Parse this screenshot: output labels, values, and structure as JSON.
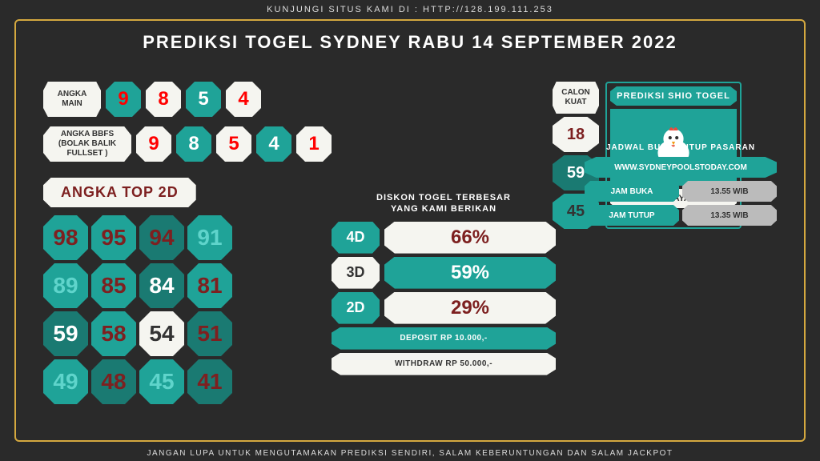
{
  "header": "KUNJUNGI SITUS KAMI DI : HTTP://128.199.111.253",
  "title": "PREDIKSI TOGEL SYDNEY RABU 14 SEPTEMBER 2022",
  "footer": "JANGAN LUPA UNTUK MENGUTAMAKAN PREDIKSI SENDIRI, SALAM KEBERUNTUNGAN DAN SALAM JACKPOT",
  "angka_main": {
    "label": "ANGKA MAIN",
    "nums": [
      "9",
      "8",
      "5",
      "4"
    ],
    "colors": [
      "teal",
      "cream",
      "teal",
      "cream"
    ],
    "textcolors": [
      "red",
      "red",
      "#fff",
      "red"
    ]
  },
  "angka_bbfs": {
    "label": "ANGKA BBFS (BOLAK BALIK FULLSET )",
    "nums": [
      "9",
      "8",
      "5",
      "4",
      "1"
    ],
    "colors": [
      "cream",
      "teal",
      "cream",
      "teal",
      "cream"
    ],
    "textcolors": [
      "red",
      "#fff",
      "red",
      "#fff",
      "red"
    ]
  },
  "top2d": {
    "title": "ANGKA TOP 2D",
    "grid": [
      [
        "98",
        "95",
        "94",
        "91"
      ],
      [
        "89",
        "85",
        "84",
        "81"
      ],
      [
        "59",
        "58",
        "54",
        "51"
      ],
      [
        "49",
        "48",
        "45",
        "41"
      ]
    ],
    "row_colors": [
      [
        "teal",
        "teal",
        "teal-dark",
        "teal"
      ],
      [
        "teal",
        "teal",
        "teal-dark",
        "teal"
      ],
      [
        "teal-dark",
        "teal",
        "cream",
        "teal-dark"
      ],
      [
        "teal",
        "teal-dark",
        "teal",
        "teal-dark"
      ]
    ],
    "text_colors": [
      [
        "red",
        "red",
        "red",
        "teal-text"
      ],
      [
        "teal-text",
        "red",
        "#fff",
        "red"
      ],
      [
        "#fff",
        "red",
        "#333",
        "red"
      ],
      [
        "teal-text",
        "red",
        "teal-text",
        "red"
      ]
    ]
  },
  "diskon": {
    "title1": "DISKON TOGEL TERBESAR",
    "title2": "YANG KAMI BERIKAN",
    "rows": [
      {
        "label": "4D",
        "val": "66%",
        "lbg": "teal",
        "vbg": "cream",
        "vcolor": "red"
      },
      {
        "label": "3D",
        "val": "59%",
        "lbg": "cream",
        "vbg": "teal",
        "vcolor": "#fff",
        "lcolor": "#333"
      },
      {
        "label": "2D",
        "val": "29%",
        "lbg": "teal",
        "vbg": "cream",
        "vcolor": "red"
      }
    ],
    "deposit": "DEPOSIT RP 10.000,-",
    "withdraw": "WITHDRAW RP 50.000,-"
  },
  "calon": {
    "label": "CALON KUAT",
    "nums": [
      "18",
      "59",
      "45"
    ],
    "colors": [
      "cream",
      "teal-dark",
      "teal"
    ],
    "textcolors": [
      "red",
      "#fff",
      "#333"
    ]
  },
  "shio": {
    "header": "PREDIKSI SHIO TOGEL",
    "name": "SHIO AYAM"
  },
  "jadwal": {
    "title": "JADWAL BUKA/TUTUP PASARAN",
    "site": "WWW.SYDNEYPOOLSTODAY.COM",
    "buka_label": "JAM BUKA",
    "buka_val": "13.55 WIB",
    "tutup_label": "JAM TUTUP",
    "tutup_val": "13.35 WIB"
  },
  "colors": {
    "teal": "#1fa398",
    "teal_dark": "#1a7a72",
    "cream": "#f5f5f0",
    "red": "#7d2020",
    "gold": "#d4a83f",
    "bg": "#2a2a2a"
  }
}
